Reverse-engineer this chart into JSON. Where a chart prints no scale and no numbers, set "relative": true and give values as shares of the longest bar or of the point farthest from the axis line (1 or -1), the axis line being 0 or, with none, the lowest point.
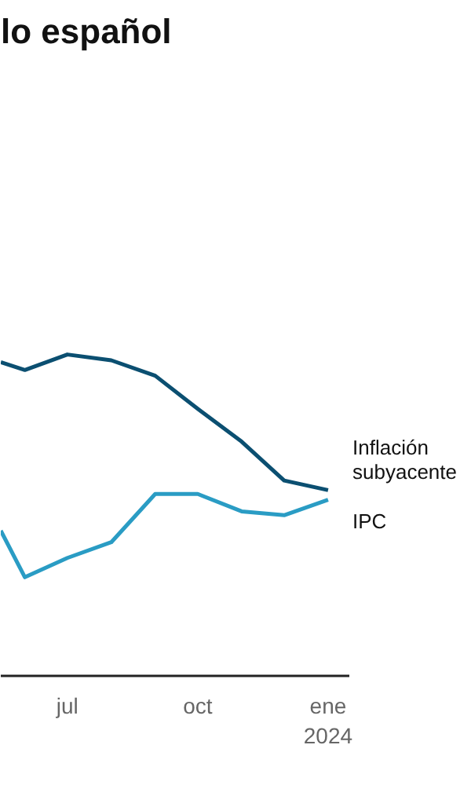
{
  "chart_data": {
    "type": "line",
    "title": "lo español",
    "relative": true,
    "x": [
      "2023-05-15",
      "2023-06-01",
      "2023-07-01",
      "2023-08-01",
      "2023-09-01",
      "2023-10-01",
      "2023-11-01",
      "2023-12-01",
      "2024-01-01"
    ],
    "xlim": [
      "2023-05-15",
      "2024-01-16"
    ],
    "xticks": [
      {
        "value": "2023-07-01",
        "label": "jul"
      },
      {
        "value": "2023-10-01",
        "label": "oct"
      },
      {
        "value": "2024-01-01",
        "label": "ene\n2024"
      }
    ],
    "series": [
      {
        "name": "Inflación subyacente",
        "color": "#0b4f71",
        "values": [
          0.976,
          0.952,
          1,
          0.982,
          0.934,
          0.831,
          0.729,
          0.608,
          0.578
        ]
      },
      {
        "name": "IPC",
        "color": "#2a9cc4",
        "values": [
          0.452,
          0.307,
          0.367,
          0.416,
          0.566,
          0.566,
          0.512,
          0.5,
          0.548
        ]
      }
    ],
    "marker": "none",
    "line_style": "solid"
  }
}
